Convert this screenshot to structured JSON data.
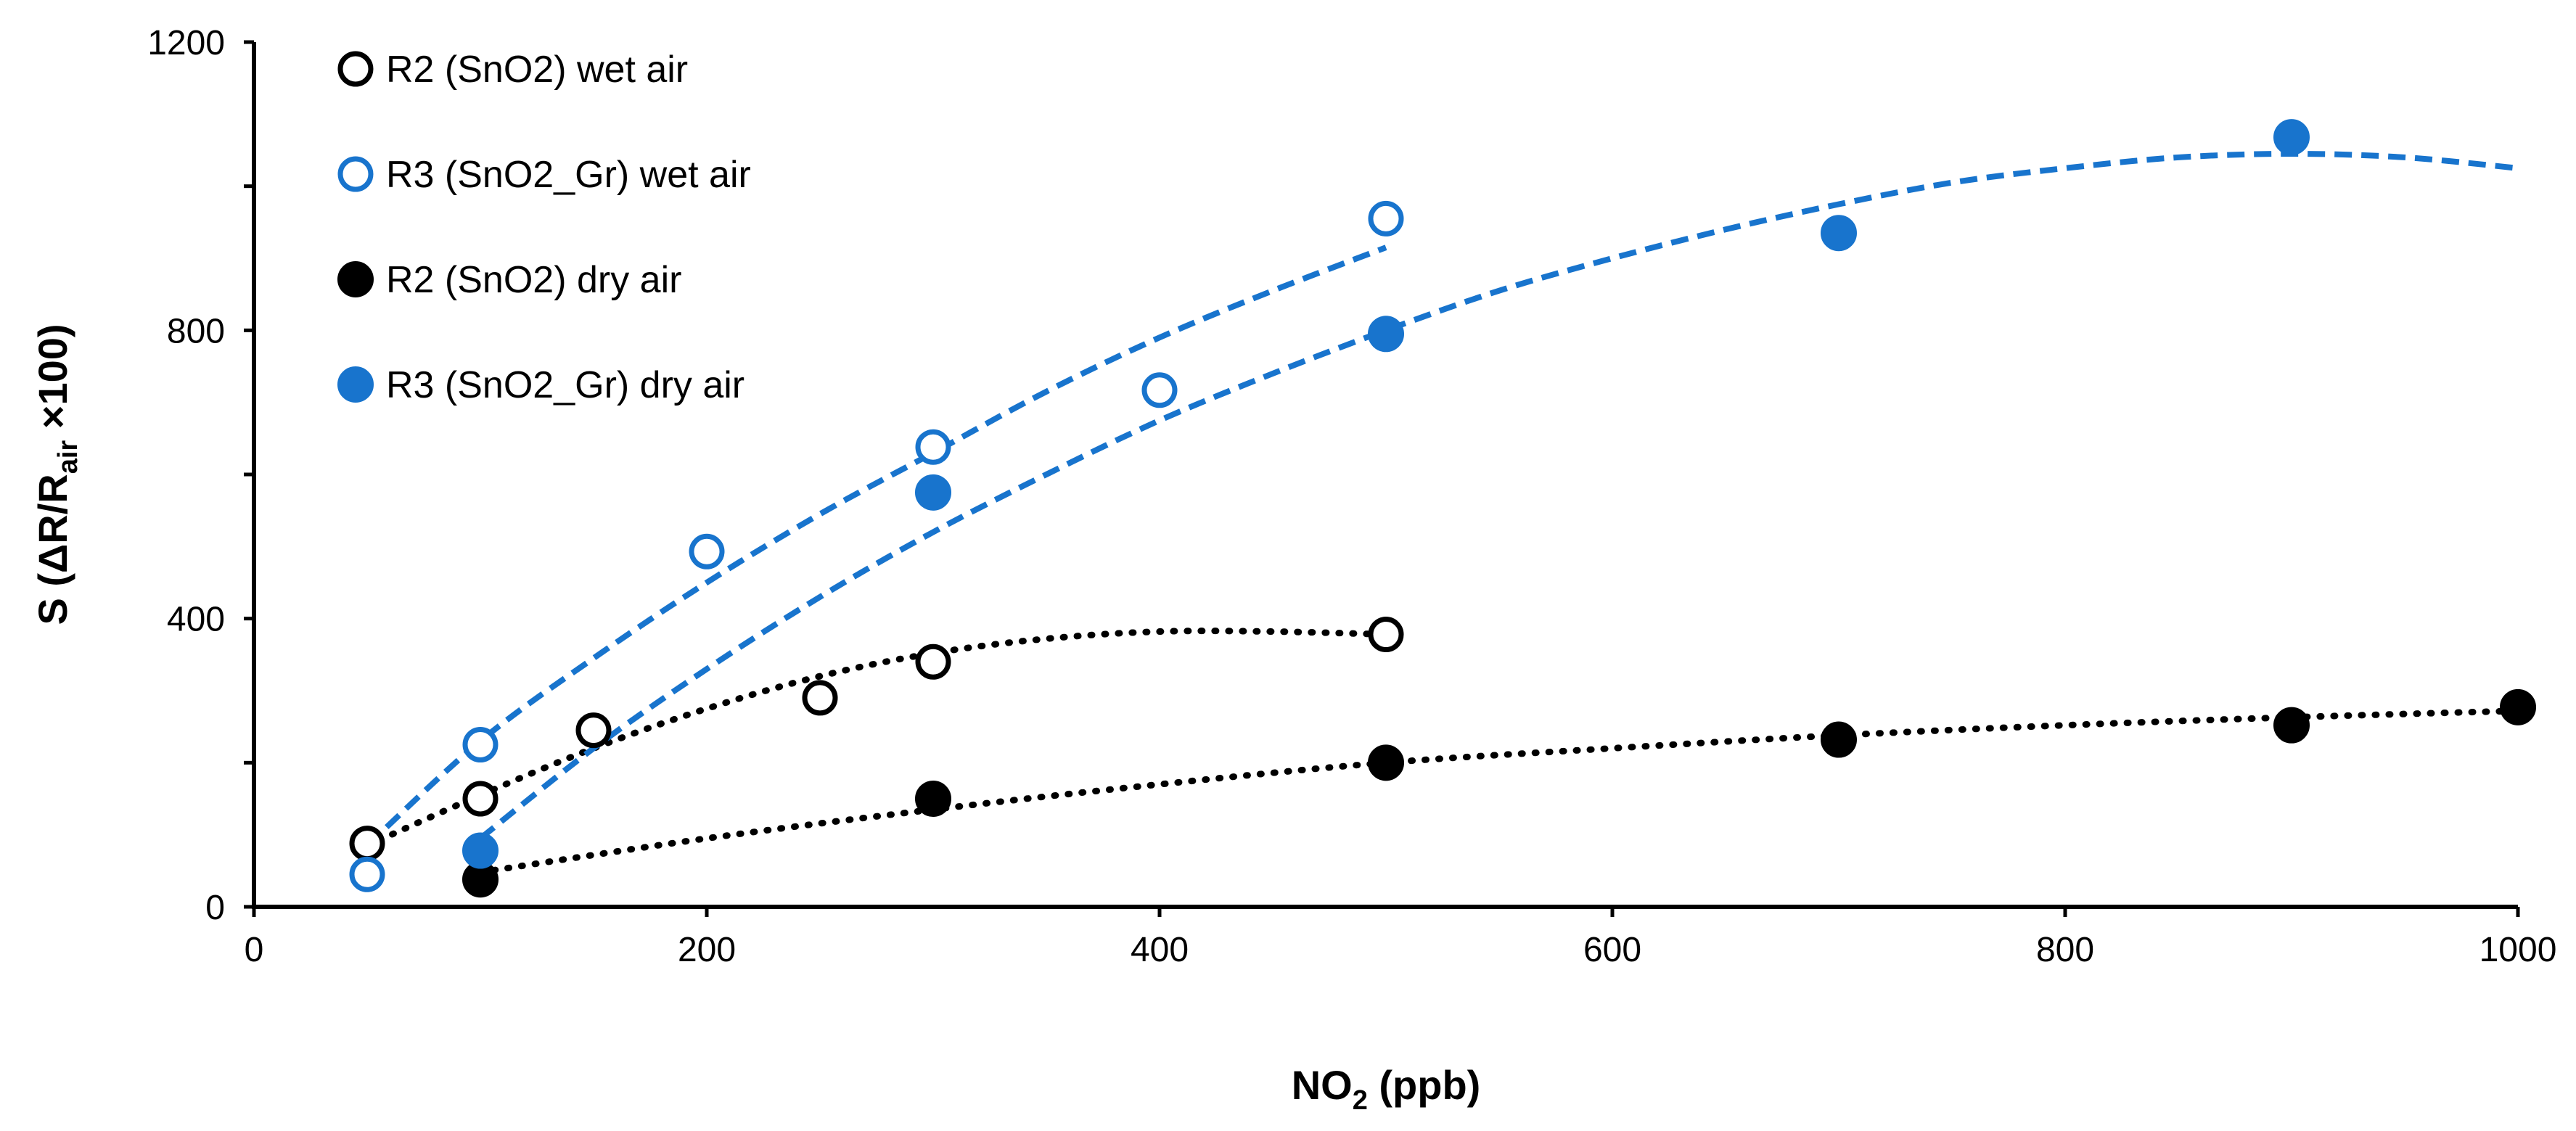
{
  "chart_data": {
    "type": "scatter",
    "xlabel": {
      "main": "NO",
      "sub": "2",
      "rest": " (ppb)"
    },
    "ylabel": {
      "prefix": "S (ΔR/R",
      "sub": "air",
      "suffix": " ×100)"
    },
    "xlim": [
      0,
      1000
    ],
    "ylim": [
      0,
      1200
    ],
    "xticks": [
      0,
      200,
      400,
      600,
      800,
      1000
    ],
    "yticks": [
      0,
      400,
      800,
      1200
    ],
    "grid": false,
    "legend_position": "top-left",
    "series": [
      {
        "name": "R2 (SnO2) wet air",
        "marker": "open-circle",
        "color": "#000000",
        "trend_style": "dotted",
        "x": [
          50,
          100,
          150,
          250,
          300,
          500
        ],
        "y": [
          88,
          150,
          245,
          290,
          340,
          378
        ],
        "trend": {
          "x": [
            50,
            100,
            150,
            200,
            250,
            300,
            350,
            400,
            450,
            500
          ],
          "y": [
            85,
            155,
            220,
            275,
            320,
            352,
            372,
            382,
            382,
            378
          ]
        }
      },
      {
        "name": "R3 (SnO2_Gr) wet air",
        "marker": "open-circle",
        "color": "#1874cd",
        "trend_style": "dashed",
        "x": [
          50,
          100,
          200,
          300,
          400,
          500
        ],
        "y": [
          45,
          225,
          493,
          638,
          717,
          955
        ],
        "trend": {
          "x": [
            50,
            100,
            150,
            200,
            250,
            300,
            350,
            400,
            450,
            500
          ],
          "y": [
            85,
            230,
            345,
            450,
            545,
            630,
            715,
            790,
            855,
            915
          ]
        }
      },
      {
        "name": "R2 (SnO2) dry air",
        "marker": "filled-circle",
        "color": "#000000",
        "trend_style": "dotted",
        "x": [
          100,
          300,
          500,
          700,
          900,
          1000
        ],
        "y": [
          38,
          150,
          200,
          232,
          252,
          277
        ],
        "trend": {
          "x": [
            100,
            200,
            300,
            400,
            500,
            600,
            700,
            800,
            900,
            1000
          ],
          "y": [
            48,
            95,
            135,
            170,
            200,
            220,
            238,
            252,
            263,
            272
          ]
        }
      },
      {
        "name": "R3 (SnO2_Gr) dry air",
        "marker": "filled-circle",
        "color": "#1874cd",
        "trend_style": "dashed",
        "x": [
          100,
          300,
          500,
          700,
          900
        ],
        "y": [
          78,
          575,
          795,
          935,
          1068
        ],
        "trend": {
          "x": [
            100,
            150,
            200,
            250,
            300,
            350,
            400,
            450,
            500,
            550,
            600,
            650,
            700,
            750,
            800,
            850,
            900,
            950,
            1000
          ],
          "y": [
            95,
            220,
            330,
            430,
            520,
            600,
            675,
            740,
            800,
            855,
            900,
            940,
            975,
            1005,
            1025,
            1040,
            1045,
            1040,
            1025
          ]
        }
      }
    ]
  }
}
